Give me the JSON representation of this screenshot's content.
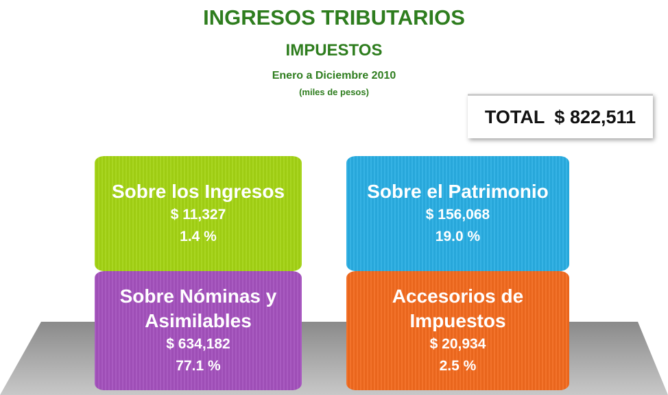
{
  "header": {
    "title": "INGRESOS TRIBUTARIOS",
    "subtitle": "IMPUESTOS",
    "period": "Enero a Diciembre 2010",
    "units": "(miles de pesos)"
  },
  "total": {
    "label": "TOTAL",
    "value": "$ 822,511"
  },
  "cards": [
    {
      "label": "Sobre los Ingresos",
      "amount": "$ 11,327",
      "percent": "1.4 %"
    },
    {
      "label": "Sobre el Patrimonio",
      "amount": "$ 156,068",
      "percent": "19.0 %"
    },
    {
      "label": "Sobre Nóminas y Asimilables",
      "amount": "$ 634,182",
      "percent": "77.1 %"
    },
    {
      "label": "Accesorios de Impuestos",
      "amount": "$ 20,934",
      "percent": "2.5 %"
    }
  ]
}
